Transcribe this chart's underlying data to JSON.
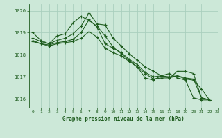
{
  "title": "Graphe pression niveau de la mer (hPa)",
  "background_color": "#cce8d8",
  "grid_color": "#aacfbe",
  "line_color": "#1e5c1e",
  "xlim": [
    -0.5,
    23
  ],
  "ylim": [
    1015.6,
    1020.3
  ],
  "yticks": [
    1016,
    1017,
    1018,
    1019,
    1020
  ],
  "xticks": [
    0,
    1,
    2,
    3,
    4,
    5,
    6,
    7,
    8,
    9,
    10,
    11,
    12,
    13,
    14,
    15,
    16,
    17,
    18,
    19,
    20,
    21,
    22,
    23
  ],
  "series": [
    {
      "x": [
        0,
        1,
        2,
        3,
        4,
        5,
        6,
        7,
        8,
        9,
        10,
        11,
        12,
        13,
        14,
        15,
        16,
        17,
        18,
        19,
        20,
        21,
        22
      ],
      "y": [
        1019.0,
        1018.65,
        1018.5,
        1018.85,
        1018.95,
        1019.45,
        1019.75,
        1019.55,
        1019.3,
        1018.85,
        1018.35,
        1018.05,
        1017.75,
        1017.45,
        1016.95,
        1016.85,
        1017.05,
        1017.15,
        1016.95,
        1016.85,
        1016.05,
        1015.95,
        1015.95
      ]
    },
    {
      "x": [
        0,
        1,
        2,
        3,
        4,
        5,
        6,
        7,
        8,
        9,
        10,
        11,
        12,
        13,
        14,
        15,
        16,
        17,
        18,
        19,
        20,
        21,
        22
      ],
      "y": [
        1018.75,
        1018.6,
        1018.5,
        1018.65,
        1018.75,
        1018.95,
        1019.3,
        1019.9,
        1019.4,
        1019.35,
        1018.75,
        1018.4,
        1018.05,
        1017.75,
        1017.45,
        1017.25,
        1017.05,
        1016.95,
        1017.25,
        1017.25,
        1017.15,
        1016.05,
        1015.95
      ]
    },
    {
      "x": [
        0,
        1,
        2,
        3,
        4,
        5,
        6,
        7,
        8,
        9,
        10,
        11,
        12,
        13,
        14,
        15,
        16,
        17,
        18,
        19,
        20,
        21,
        22
      ],
      "y": [
        1018.65,
        1018.5,
        1018.45,
        1018.55,
        1018.6,
        1018.7,
        1019.0,
        1019.6,
        1019.25,
        1018.5,
        1018.3,
        1018.1,
        1017.8,
        1017.55,
        1017.2,
        1017.0,
        1017.05,
        1017.0,
        1017.05,
        1016.95,
        1016.9,
        1016.05,
        1015.95
      ]
    },
    {
      "x": [
        0,
        1,
        2,
        3,
        4,
        5,
        6,
        7,
        8,
        9,
        10,
        11,
        12,
        13,
        14,
        15,
        16,
        17,
        18,
        19,
        20,
        21,
        22
      ],
      "y": [
        1018.6,
        1018.5,
        1018.4,
        1018.5,
        1018.55,
        1018.6,
        1018.75,
        1019.05,
        1018.8,
        1018.3,
        1018.1,
        1017.95,
        1017.7,
        1017.45,
        1017.15,
        1016.9,
        1016.95,
        1016.95,
        1017.05,
        1016.9,
        1016.85,
        1016.45,
        1015.95
      ]
    }
  ]
}
